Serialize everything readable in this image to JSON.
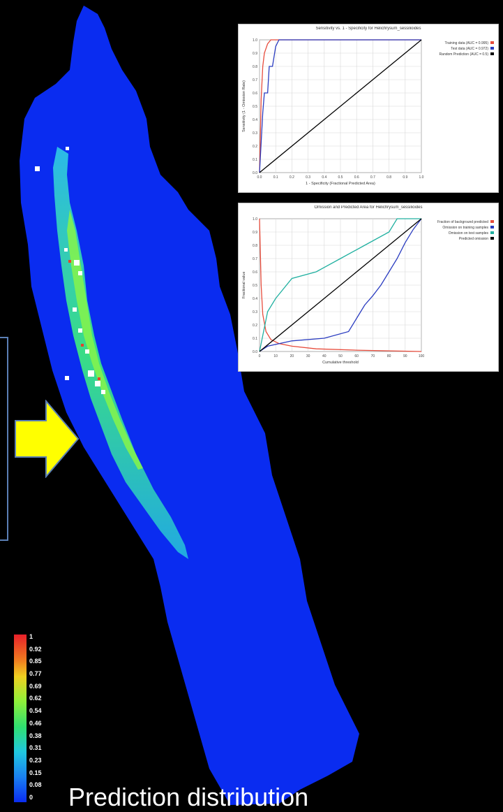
{
  "caption": "Prediction distribution",
  "colors": {
    "background": "#000000",
    "map_low": "#0a2cf0",
    "arrow": "#ffff00",
    "frame": "#5b7fb5",
    "curve_red": "#e74c3c",
    "curve_blue": "#2a3cc0",
    "curve_teal": "#20b0a0",
    "diagonal": "#000000"
  },
  "scale": {
    "labels": [
      "1",
      "0.92",
      "0.85",
      "0.77",
      "0.69",
      "0.62",
      "0.54",
      "0.46",
      "0.38",
      "0.31",
      "0.23",
      "0.15",
      "0.08",
      "0"
    ]
  },
  "icons": {
    "arrow": "right-arrow-icon"
  },
  "charts": {
    "roc": {
      "title": "Sensitivity vs. 1 - Specificity for Helichrysum_sessilioides",
      "xlabel": "1 - Specificity (Fractional Predicted Area)",
      "ylabel": "Sensitivity (1 - Omission Rate)",
      "legend": [
        "Training data (AUC = 0.995)",
        "Test data (AUC = 0.972)",
        "Random Prediction (AUC = 0.5)"
      ]
    },
    "omission": {
      "title": "Omission and Predicted Area for Helichrysum_sessilioides",
      "xlabel": "Cumulative threshold",
      "ylabel": "Fractional value",
      "legend": [
        "Fraction of background predicted",
        "Omission on training samples",
        "Omission on test samples",
        "Predicted omission"
      ]
    }
  },
  "chart_data": [
    {
      "type": "line",
      "title": "Sensitivity vs. 1 - Specificity for Helichrysum_sessilioides",
      "xlabel": "1 - Specificity (Fractional Predicted Area)",
      "ylabel": "Sensitivity (1 - Omission Rate)",
      "xlim": [
        0,
        1
      ],
      "ylim": [
        0,
        1
      ],
      "grid": true,
      "legend_position": "right",
      "series": [
        {
          "name": "Training data (AUC = 0.995)",
          "color": "#e74c3c",
          "x": [
            0,
            0.01,
            0.02,
            0.03,
            0.05,
            0.07,
            0.1,
            1
          ],
          "y": [
            0,
            0.55,
            0.8,
            0.9,
            0.97,
            1.0,
            1.0,
            1.0
          ]
        },
        {
          "name": "Test data (AUC = 0.972)",
          "color": "#2a3cc0",
          "x": [
            0,
            0.02,
            0.03,
            0.05,
            0.06,
            0.08,
            0.1,
            0.12,
            1
          ],
          "y": [
            0,
            0.45,
            0.6,
            0.6,
            0.8,
            0.8,
            0.95,
            1.0,
            1.0
          ]
        },
        {
          "name": "Random Prediction (AUC = 0.5)",
          "color": "#000000",
          "x": [
            0,
            1
          ],
          "y": [
            0,
            1
          ]
        }
      ]
    },
    {
      "type": "line",
      "title": "Omission and Predicted Area for Helichrysum_sessilioides",
      "xlabel": "Cumulative threshold",
      "ylabel": "Fractional value",
      "xlim": [
        0,
        100
      ],
      "ylim": [
        0,
        1
      ],
      "grid": true,
      "legend_position": "right",
      "series": [
        {
          "name": "Fraction of background predicted",
          "color": "#e74c3c",
          "x": [
            0,
            1,
            2,
            4,
            7,
            12,
            20,
            35,
            60,
            100
          ],
          "y": [
            1.0,
            0.5,
            0.28,
            0.15,
            0.09,
            0.06,
            0.04,
            0.02,
            0.01,
            0.0
          ]
        },
        {
          "name": "Omission on training samples",
          "color": "#2a3cc0",
          "x": [
            0,
            5,
            20,
            40,
            55,
            60,
            65,
            70,
            75,
            80,
            85,
            90,
            95,
            100
          ],
          "y": [
            0,
            0.04,
            0.08,
            0.1,
            0.15,
            0.25,
            0.35,
            0.42,
            0.5,
            0.6,
            0.7,
            0.82,
            0.92,
            1.0
          ]
        },
        {
          "name": "Omission on test samples",
          "color": "#20b0a0",
          "x": [
            0,
            5,
            10,
            20,
            35,
            50,
            65,
            80,
            85,
            100
          ],
          "y": [
            0,
            0.3,
            0.4,
            0.55,
            0.6,
            0.7,
            0.8,
            0.9,
            1.0,
            1.0
          ]
        },
        {
          "name": "Predicted omission",
          "color": "#000000",
          "x": [
            0,
            100
          ],
          "y": [
            0,
            1
          ]
        }
      ]
    }
  ]
}
